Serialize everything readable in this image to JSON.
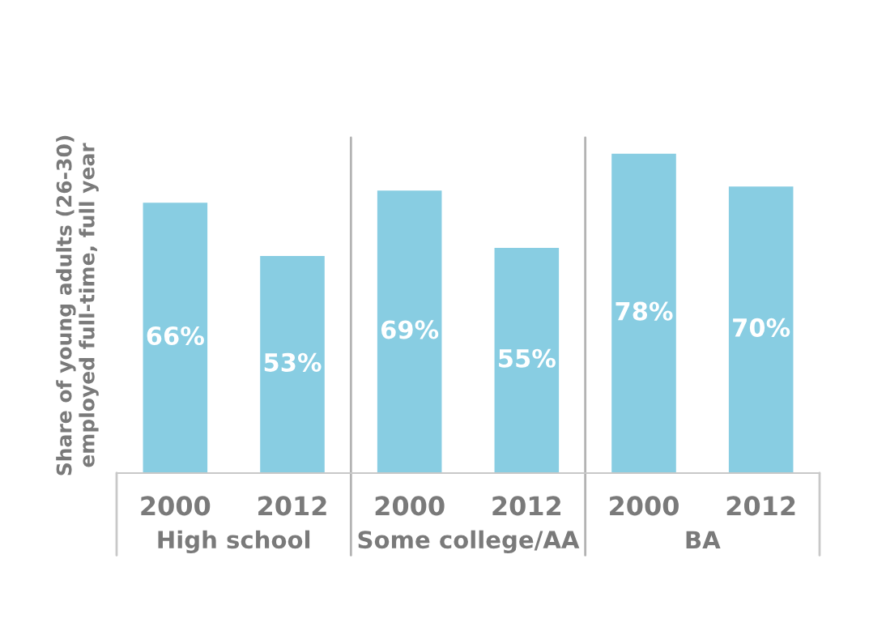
{
  "chart_data": {
    "type": "bar",
    "ylabel": "Share of young adults (26-30)\nemployed full-time, full year",
    "categories": [
      "2000",
      "2012",
      "2000",
      "2012",
      "2000",
      "2012"
    ],
    "values": [
      66,
      53,
      69,
      55,
      78,
      70
    ],
    "value_labels": [
      "66%",
      "53%",
      "69%",
      "55%",
      "78%",
      "70%"
    ],
    "color": "#88cde2",
    "annotations": [
      "High school",
      "Some college/AA",
      "BA"
    ],
    "tick_labels": "x",
    "grid": false,
    "legend": false
  }
}
